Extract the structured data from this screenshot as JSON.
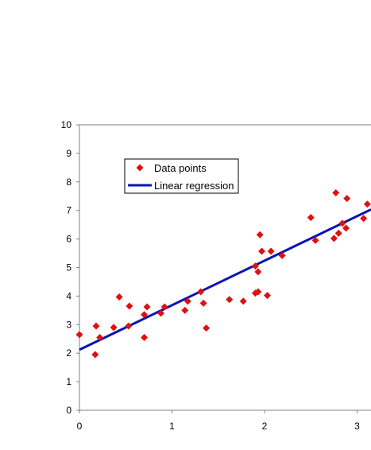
{
  "chart_data": {
    "type": "scatter",
    "xlim": [
      0,
      3.15
    ],
    "ylim": [
      0,
      10
    ],
    "x_ticks": [
      "0",
      "1",
      "2",
      "3"
    ],
    "y_ticks": [
      "0",
      "1",
      "2",
      "3",
      "4",
      "5",
      "6",
      "7",
      "8",
      "9",
      "10"
    ],
    "grid": false,
    "legend_position": "top-left",
    "series": [
      {
        "name": "Data points",
        "marker": "diamond",
        "color": "#e01010",
        "points": [
          [
            0.0,
            2.65
          ],
          [
            0.17,
            1.95
          ],
          [
            0.18,
            2.95
          ],
          [
            0.22,
            2.55
          ],
          [
            0.37,
            2.9
          ],
          [
            0.43,
            3.97
          ],
          [
            0.53,
            2.95
          ],
          [
            0.54,
            3.65
          ],
          [
            0.7,
            2.55
          ],
          [
            0.7,
            3.35
          ],
          [
            0.73,
            3.62
          ],
          [
            0.88,
            3.4
          ],
          [
            0.92,
            3.62
          ],
          [
            1.14,
            3.5
          ],
          [
            1.17,
            3.82
          ],
          [
            1.31,
            4.15
          ],
          [
            1.34,
            3.75
          ],
          [
            1.37,
            2.88
          ],
          [
            1.62,
            3.88
          ],
          [
            1.77,
            3.82
          ],
          [
            1.9,
            4.1
          ],
          [
            1.9,
            5.05
          ],
          [
            1.93,
            4.85
          ],
          [
            1.93,
            4.15
          ],
          [
            1.95,
            6.15
          ],
          [
            1.97,
            5.57
          ],
          [
            2.03,
            4.02
          ],
          [
            2.07,
            5.57
          ],
          [
            2.19,
            5.42
          ],
          [
            2.5,
            6.75
          ],
          [
            2.55,
            5.95
          ],
          [
            2.75,
            6.02
          ],
          [
            2.77,
            7.62
          ],
          [
            2.8,
            6.2
          ],
          [
            2.84,
            6.55
          ],
          [
            2.88,
            6.38
          ],
          [
            2.89,
            7.42
          ],
          [
            3.07,
            6.72
          ],
          [
            3.11,
            7.22
          ]
        ]
      },
      {
        "name": "Linear regression",
        "type": "line",
        "color": "#0a14b4",
        "intercept": 2.12,
        "slope": 1.56
      }
    ]
  }
}
